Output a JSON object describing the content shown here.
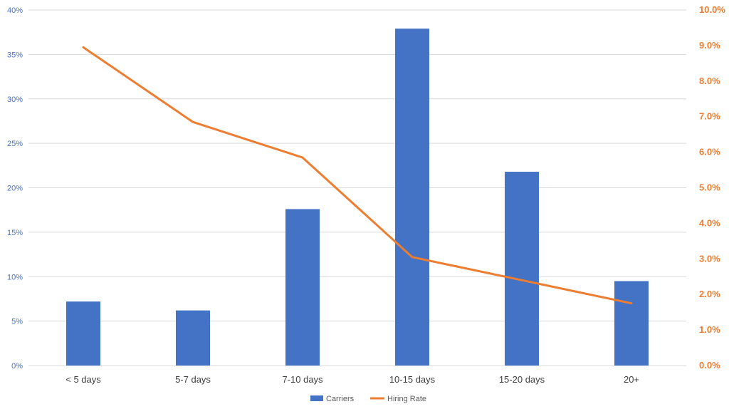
{
  "chart_data": {
    "type": "bar",
    "categories": [
      "< 5 days",
      "5-7 days",
      "7-10 days",
      "10-15 days",
      "15-20 days",
      "20+"
    ],
    "series": [
      {
        "name": "Carriers",
        "type": "bar",
        "axis": "left",
        "values": [
          7.2,
          6.2,
          17.6,
          37.9,
          21.8,
          9.5
        ]
      },
      {
        "name": "Hiring Rate",
        "type": "line",
        "axis": "right",
        "values": [
          8.95,
          6.85,
          5.85,
          3.05,
          2.4,
          1.75
        ]
      }
    ],
    "y_left": {
      "ylim": [
        0,
        40
      ],
      "ticks": [
        "0%",
        "5%",
        "10%",
        "15%",
        "20%",
        "25%",
        "30%",
        "35%",
        "40%"
      ]
    },
    "y_right": {
      "ylim": [
        0,
        10
      ],
      "ticks": [
        "0.0%",
        "1.0%",
        "2.0%",
        "3.0%",
        "4.0%",
        "5.0%",
        "6.0%",
        "7.0%",
        "8.0%",
        "9.0%",
        "10.0%"
      ]
    },
    "grid": true,
    "legend": "bottom-center",
    "colors": {
      "bar": "#4472C4",
      "line": "#ED7D31",
      "left_axis_text": "#4472C4",
      "right_axis_text": "#ED7D31",
      "category_text": "#404040",
      "grid": "#D9D9D9"
    }
  }
}
